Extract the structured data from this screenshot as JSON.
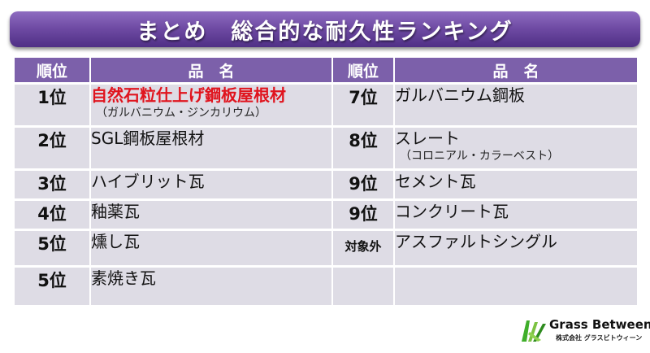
{
  "title": "まとめ　総合的な耐久性ランキング",
  "headers": {
    "rank": "順位",
    "name": "品　名"
  },
  "left": [
    {
      "rank": "1位",
      "name": "自然石粒仕上げ鋼板屋根材",
      "sub": "（ガルバニウム・ジンカリウム）",
      "highlight": true
    },
    {
      "rank": "2位",
      "name": "SGL鋼板屋根材",
      "sub": ""
    },
    {
      "rank": "3位",
      "name": "ハイブリット瓦",
      "sub": ""
    },
    {
      "rank": "4位",
      "name": "釉薬瓦",
      "sub": ""
    },
    {
      "rank": "5位",
      "name": "燻し瓦",
      "sub": ""
    },
    {
      "rank": "5位",
      "name": "素焼き瓦",
      "sub": ""
    }
  ],
  "right": [
    {
      "rank": "7位",
      "name": "ガルバニウム鋼板",
      "sub": ""
    },
    {
      "rank": "8位",
      "name": "スレート",
      "sub": "（コロニアル・カラーベスト）"
    },
    {
      "rank": "9位",
      "name": "セメント瓦",
      "sub": ""
    },
    {
      "rank": "9位",
      "name": "コンクリート瓦",
      "sub": ""
    },
    {
      "rank": "対象外",
      "name": "アスファルトシングル",
      "sub": ""
    },
    {
      "rank": "",
      "name": "",
      "sub": ""
    }
  ],
  "logo": {
    "main": "Grass Between",
    "sub": "株式会社 グラスビトウィーン"
  },
  "colors": {
    "title_bg": "#6e4aa3",
    "header_bg": "#7c60aa",
    "cell_bg": "#dedce5",
    "highlight_text": "#e0141e"
  }
}
